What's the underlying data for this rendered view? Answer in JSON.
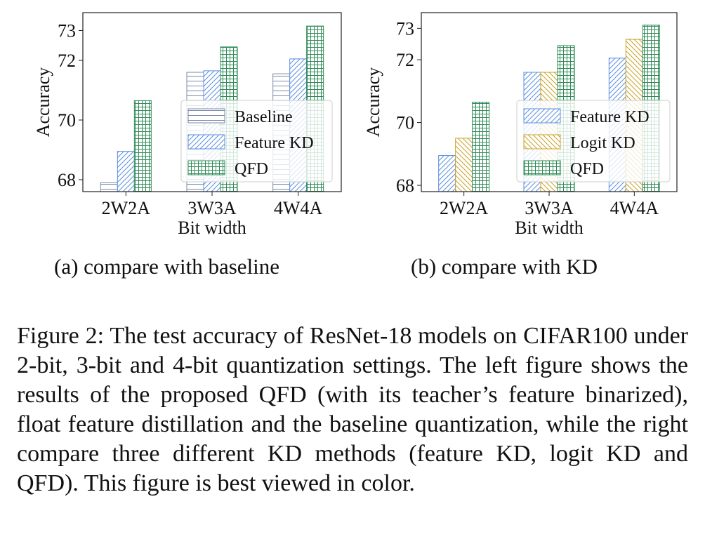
{
  "chart_data": [
    {
      "type": "bar",
      "subcaption": "(a) compare with baseline",
      "categories": [
        "2W2A",
        "3W3A",
        "4W4A"
      ],
      "xlabel": "Bit width",
      "ylabel": "Accuracy",
      "ylim": [
        67.6,
        73.6
      ],
      "yticks": [
        68,
        70,
        72,
        73
      ],
      "grid": false,
      "legend_position": "lower-right",
      "series": [
        {
          "name": "Baseline",
          "values": [
            67.9,
            71.6,
            71.55
          ],
          "color": "#7a8aa8",
          "hatch": "horizontal"
        },
        {
          "name": "Feature KD",
          "values": [
            68.95,
            71.65,
            72.05
          ],
          "color": "#5b8fe0",
          "hatch": "diagonal"
        },
        {
          "name": "QFD",
          "values": [
            70.65,
            72.45,
            73.15
          ],
          "color": "#2e8b57",
          "hatch": "grid"
        }
      ]
    },
    {
      "type": "bar",
      "subcaption": "(b) compare with KD",
      "categories": [
        "2W2A",
        "3W3A",
        "4W4A"
      ],
      "xlabel": "Bit width",
      "ylabel": "Accuracy",
      "ylim": [
        67.8,
        73.5
      ],
      "yticks": [
        68,
        70,
        72,
        73
      ],
      "grid": false,
      "legend_position": "lower-right",
      "series": [
        {
          "name": "Feature KD",
          "values": [
            68.95,
            71.6,
            72.05
          ],
          "color": "#5b8fe0",
          "hatch": "diagonal"
        },
        {
          "name": "Logit KD",
          "values": [
            69.5,
            71.6,
            72.65
          ],
          "color": "#c9a227",
          "hatch": "anti-diagonal"
        },
        {
          "name": "QFD",
          "values": [
            70.65,
            72.45,
            73.1
          ],
          "color": "#2e8b57",
          "hatch": "grid"
        }
      ]
    }
  ],
  "figure_caption": "Figure 2: The test accuracy of ResNet-18 models on CIFAR100 under 2-bit, 3-bit and 4-bit quantization settings. The left figure shows the results of the proposed QFD (with its teacher’s feature binarized), float feature distillation and the baseline quantization, while the right compare three different KD methods (feature KD, logit KD and QFD). This figure is best viewed in color."
}
